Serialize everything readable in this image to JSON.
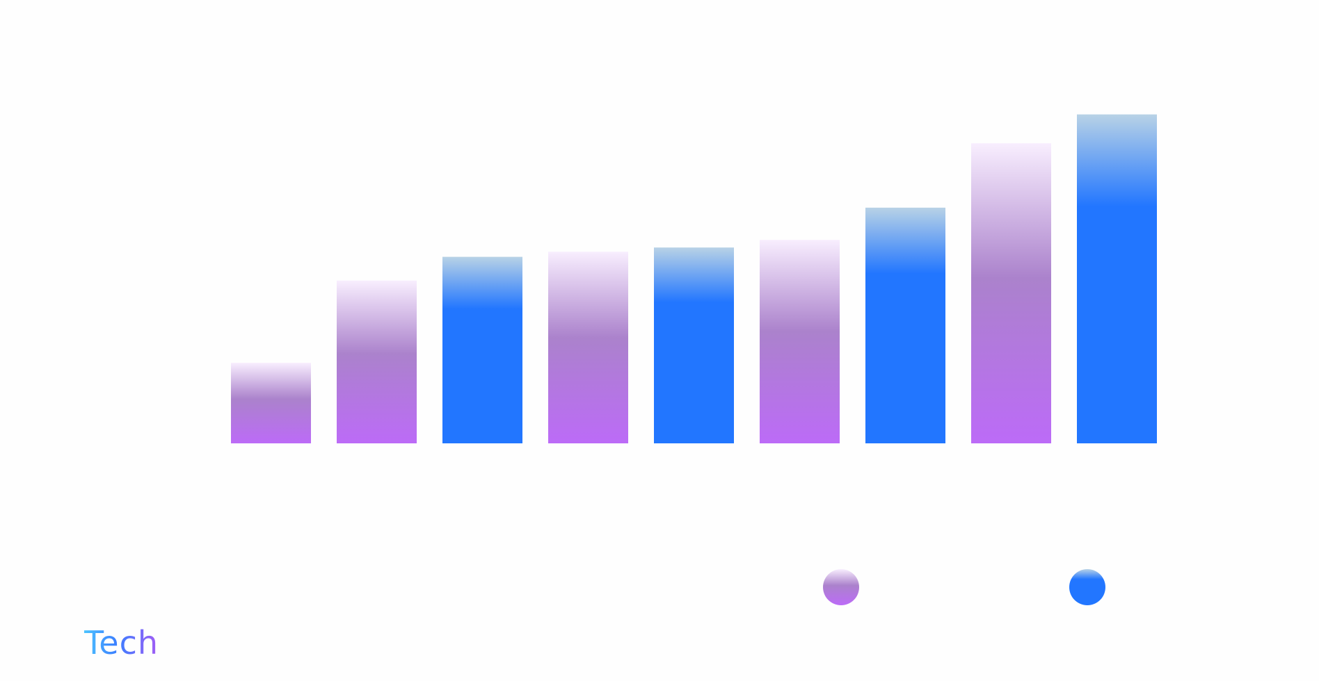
{
  "brand": {
    "text": "Tech"
  },
  "colors": {
    "purple_base": "#b96af5",
    "purple_mid": "#ac80cf",
    "purple_top": "#f6ecfd",
    "blue_base": "#2176ff",
    "blue_top": "#b4d0e8"
  },
  "chart_data": {
    "type": "bar",
    "categories": [
      "",
      "",
      "",
      "",
      "",
      "",
      "",
      "",
      ""
    ],
    "values": [
      95,
      192,
      220,
      226,
      231,
      240,
      278,
      354,
      388
    ],
    "bar_series": [
      0,
      0,
      1,
      0,
      1,
      0,
      1,
      0,
      1
    ],
    "series": [
      {
        "name": "",
        "color": "purple"
      },
      {
        "name": "",
        "color": "blue"
      }
    ],
    "ylim": [
      0,
      400
    ],
    "grid": false,
    "legend_position": "bottom-right",
    "title": "",
    "xlabel": "",
    "ylabel": ""
  }
}
